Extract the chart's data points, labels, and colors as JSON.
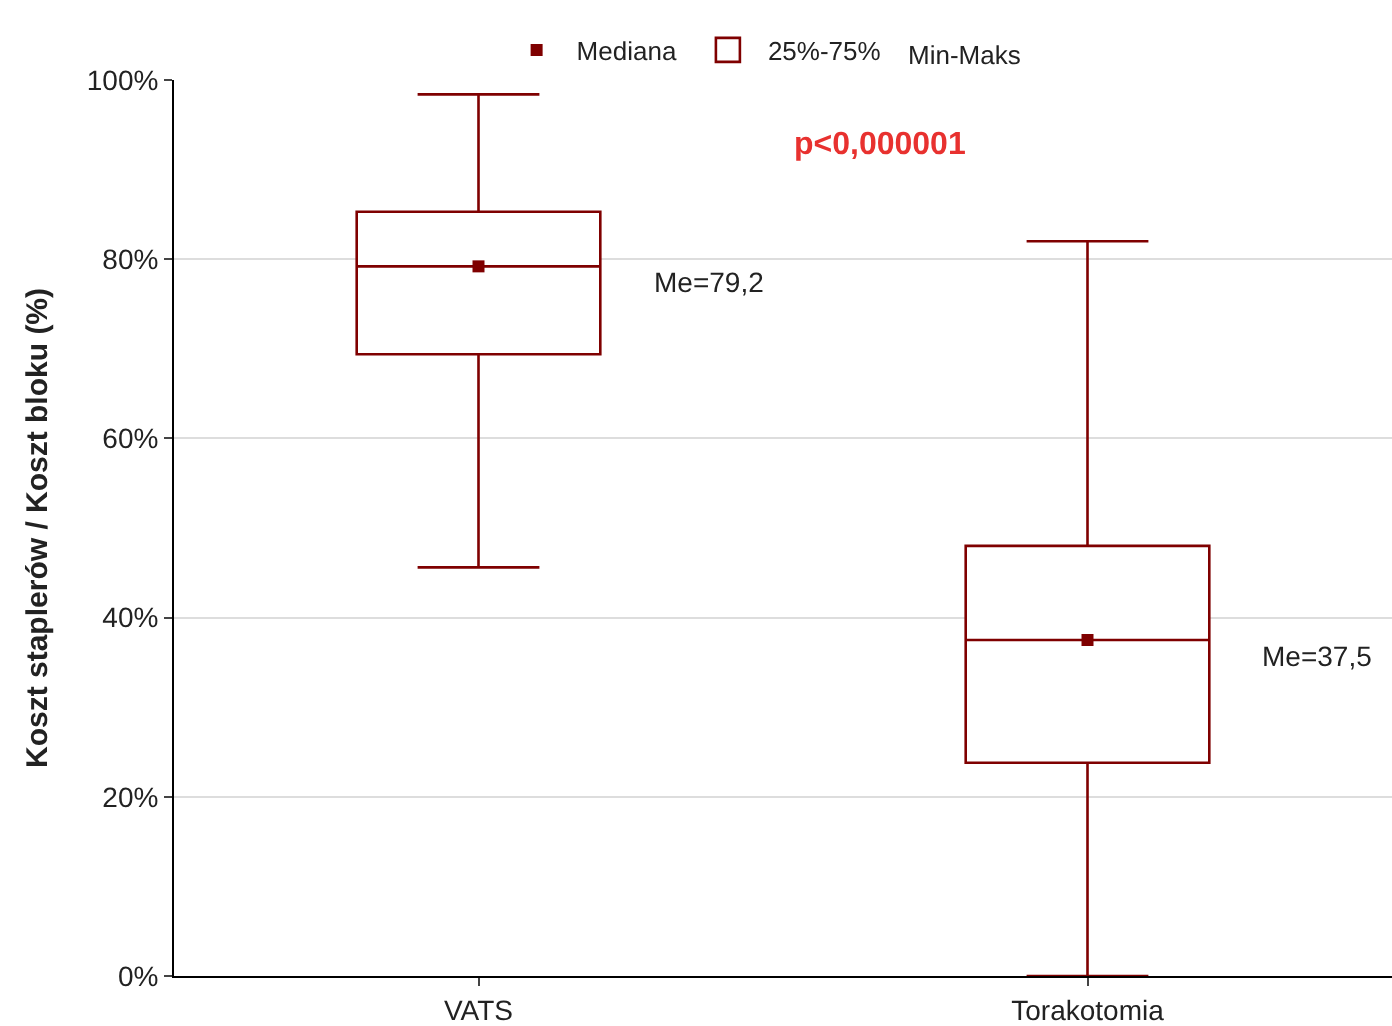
{
  "chart_data": {
    "type": "box",
    "ylabel": "Koszt staplerów / Koszt bloku (%)",
    "categories": [
      "VATS",
      "Torakotomia"
    ],
    "ylim": [
      0,
      100
    ],
    "yticks": [
      {
        "value": 0,
        "label": "0%"
      },
      {
        "value": 20,
        "label": "20%"
      },
      {
        "value": 40,
        "label": "40%"
      },
      {
        "value": 60,
        "label": "60%"
      },
      {
        "value": 80,
        "label": "80%"
      },
      {
        "value": 100,
        "label": "100%"
      }
    ],
    "grid": "y",
    "legend": "top",
    "series": [
      {
        "name": "Mediana",
        "type": "scatter",
        "color": "#7f0000",
        "marker": "square",
        "values": [
          79.2,
          37.5
        ]
      },
      {
        "name": "25%-75%",
        "type": "box",
        "color": "#7f0000",
        "boxes": [
          {
            "low": 45.6,
            "q1": 69.4,
            "median": 79.2,
            "q3": 85.3,
            "high": 98.4
          },
          {
            "low": 0,
            "q1": 23.8,
            "median": 37.5,
            "q3": 48.0,
            "high": 82.0
          }
        ]
      }
    ],
    "annotations": [
      "p<0,000001",
      "Min-Maks",
      "Me=79,2",
      "Me=37,5"
    ]
  }
}
